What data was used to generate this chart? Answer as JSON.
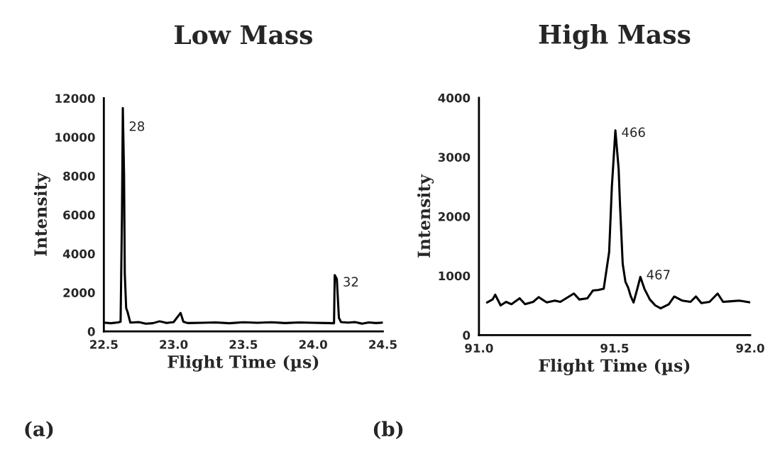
{
  "chart_data": [
    {
      "type": "line",
      "title": "Low Mass",
      "xlabel": "Flight Time (µs)",
      "ylabel": "Intensity",
      "xlim": [
        22.5,
        24.5
      ],
      "xticks": [
        {
          "value": 22.5,
          "label": "22.5"
        },
        {
          "value": 23.0,
          "label": "23.0"
        },
        {
          "value": 23.5,
          "label": "23.5"
        },
        {
          "value": 24.0,
          "label": "24.0"
        },
        {
          "value": 24.5,
          "label": "24.5"
        }
      ],
      "ylim": [
        0,
        12000
      ],
      "yticks": [
        0,
        2000,
        4000,
        6000,
        8000,
        10000,
        12000
      ],
      "grid": false,
      "marker": "none",
      "line_style": "solid",
      "series": [
        {
          "color": "#000000",
          "x": [
            22.5,
            22.55,
            22.6,
            22.62,
            22.63,
            22.636,
            22.645,
            22.65,
            22.66,
            22.67,
            22.69,
            22.75,
            22.8,
            22.85,
            22.9,
            22.95,
            23.0,
            23.05,
            23.07,
            23.1,
            23.2,
            23.3,
            23.4,
            23.5,
            23.6,
            23.7,
            23.8,
            23.9,
            24.0,
            24.1,
            24.15,
            24.155,
            24.17,
            24.185,
            24.2,
            24.25,
            24.3,
            24.35,
            24.4,
            24.45,
            24.5
          ],
          "values": [
            450,
            420,
            460,
            500,
            6000,
            11500,
            8000,
            3000,
            1200,
            1000,
            450,
            480,
            400,
            420,
            520,
            430,
            480,
            950,
            500,
            430,
            440,
            460,
            420,
            470,
            440,
            470,
            430,
            460,
            440,
            430,
            420,
            2900,
            2700,
            700,
            480,
            450,
            480,
            400,
            460,
            430,
            450
          ]
        }
      ],
      "annotations": [
        {
          "text": "28",
          "x": 22.636,
          "y": 10500
        },
        {
          "text": "32",
          "x": 24.17,
          "y": 2500
        },
        "(a)"
      ]
    },
    {
      "type": "line",
      "title": "High Mass",
      "xlabel": "Flight Time (µs)",
      "ylabel": "Intensity",
      "xlim": [
        91.0,
        92.0
      ],
      "xticks": [
        {
          "value": 91.0,
          "label": "91.0"
        },
        {
          "value": 91.5,
          "label": "91.5"
        },
        {
          "value": 92.0,
          "label": "92.0"
        }
      ],
      "ylim": [
        0,
        4000
      ],
      "yticks": [
        0,
        1000,
        2000,
        3000,
        4000
      ],
      "grid": false,
      "marker": "none",
      "line_style": "solid",
      "series": [
        {
          "color": "#000000",
          "x": [
            91.03,
            91.05,
            91.06,
            91.08,
            91.1,
            91.12,
            91.15,
            91.17,
            91.2,
            91.22,
            91.25,
            91.28,
            91.3,
            91.35,
            91.37,
            91.4,
            91.42,
            91.44,
            91.46,
            91.48,
            91.49,
            91.503,
            91.515,
            91.52,
            91.53,
            91.54,
            91.55,
            91.56,
            91.57,
            91.585,
            91.595,
            91.61,
            91.63,
            91.65,
            91.67,
            91.7,
            91.72,
            91.75,
            91.78,
            91.8,
            91.82,
            91.85,
            91.88,
            91.9,
            91.93,
            91.96,
            92.0
          ],
          "values": [
            550,
            600,
            680,
            500,
            560,
            520,
            620,
            520,
            560,
            640,
            550,
            580,
            560,
            700,
            600,
            620,
            750,
            760,
            780,
            1400,
            2500,
            3450,
            2800,
            2200,
            1200,
            900,
            800,
            650,
            550,
            800,
            980,
            780,
            600,
            500,
            450,
            520,
            650,
            580,
            560,
            650,
            540,
            560,
            700,
            560,
            570,
            580,
            550
          ]
        }
      ],
      "annotations": [
        {
          "text": "466",
          "x": 91.503,
          "y": 3400
        },
        {
          "text": "467",
          "x": 91.595,
          "y": 1000
        },
        "(b)"
      ]
    }
  ]
}
